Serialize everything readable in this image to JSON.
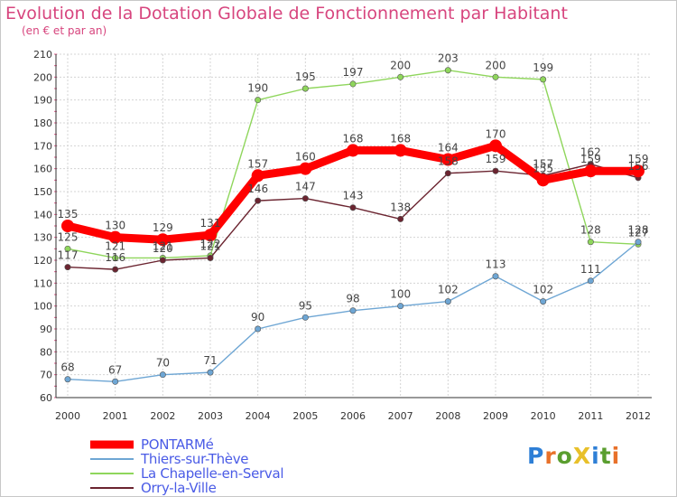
{
  "chart_data": {
    "type": "line",
    "title": "Evolution de la Dotation Globale de Fonctionnement par Habitant",
    "subtitle": "(en € et par an)",
    "xlabel": "",
    "ylabel": "",
    "categories": [
      "2000",
      "2001",
      "2002",
      "2003",
      "2004",
      "2005",
      "2006",
      "2007",
      "2008",
      "2009",
      "2010",
      "2011",
      "2012"
    ],
    "ylim": [
      60,
      210
    ],
    "yticks": [
      60,
      70,
      80,
      90,
      100,
      110,
      120,
      130,
      140,
      150,
      160,
      170,
      180,
      190,
      200,
      210
    ],
    "grid": true,
    "legend_position": "bottom-left",
    "series": [
      {
        "name": "PONTARMé",
        "color": "#ff0000",
        "values": [
          135,
          130,
          129,
          131,
          157,
          160,
          168,
          168,
          164,
          170,
          155,
          159,
          159
        ],
        "labels": [
          "135",
          "130",
          "129",
          "131",
          "157",
          "160",
          "168",
          "168",
          "164",
          "170",
          "155",
          "159",
          "159"
        ]
      },
      {
        "name": "Thiers-sur-Thève",
        "color": "#6ea6d4",
        "values": [
          68,
          67,
          70,
          71,
          90,
          95,
          98,
          100,
          102,
          113,
          102,
          111,
          128
        ],
        "labels": [
          "68",
          "67",
          "70",
          "71",
          "90",
          "95",
          "98",
          "100",
          "102",
          "113",
          "102",
          "111",
          "128"
        ]
      },
      {
        "name": "La Chapelle-en-Serval",
        "color": "#8fd65c",
        "values": [
          125,
          121,
          121,
          122,
          190,
          195,
          197,
          200,
          203,
          200,
          199,
          128,
          127
        ],
        "labels": [
          "125",
          "121",
          "121",
          "122",
          "190",
          "195",
          "197",
          "200",
          "203",
          "200",
          "199",
          "128",
          "127"
        ]
      },
      {
        "name": "Orry-la-Ville",
        "color": "#6b2430",
        "values": [
          117,
          116,
          120,
          121,
          146,
          147,
          143,
          138,
          158,
          159,
          157,
          162,
          156
        ],
        "labels": [
          "117",
          "116",
          "120",
          "121",
          "146",
          "147",
          "143",
          "138",
          "158",
          "159",
          "157",
          "162",
          "156"
        ]
      }
    ]
  },
  "logo": {
    "text": "ProXiti",
    "letters": [
      "P",
      "r",
      "o",
      "X",
      "i",
      "t",
      "i"
    ],
    "colors": [
      "#2e7fd6",
      "#e8712a",
      "#5a9e2f",
      "#e8c02a",
      "#2e7fd6",
      "#5a9e2f",
      "#e8712a"
    ]
  }
}
